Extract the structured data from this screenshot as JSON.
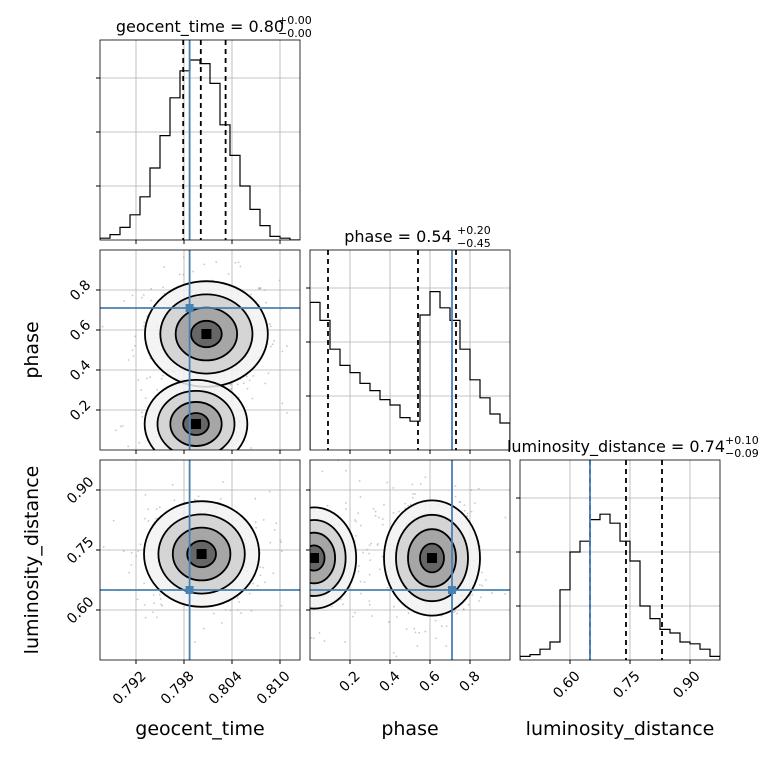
{
  "chart_data": {
    "type": "corner",
    "parameters": [
      {
        "name": "geocent_time",
        "axis_label": "geocent_time",
        "range": [
          0.7875,
          0.8125
        ],
        "ticks": [
          0.792,
          0.798,
          0.804,
          0.81
        ],
        "tick_labels": [
          "0.792",
          "0.798",
          "0.804",
          "0.810"
        ],
        "truth": 0.7987,
        "quantiles": [
          0.7979,
          0.8001,
          0.8032
        ],
        "title_prefix": "geocent_time = ",
        "median": "0.80",
        "upper_err": "+0.00",
        "lower_err": "−0.00",
        "hist_counts": [
          0.01,
          0.03,
          0.07,
          0.14,
          0.24,
          0.4,
          0.58,
          0.79,
          0.94,
          1.0,
          0.98,
          0.87,
          0.64,
          0.47,
          0.3,
          0.17,
          0.08,
          0.02,
          0.01,
          0.0
        ]
      },
      {
        "name": "phase",
        "axis_label": "phase",
        "range": [
          0.0,
          1.0
        ],
        "ticks": [
          0.2,
          0.4,
          0.6,
          0.8
        ],
        "tick_labels": [
          "0.2",
          "0.4",
          "0.6",
          "0.8"
        ],
        "truth": 0.71,
        "quantiles": [
          0.09,
          0.54,
          0.73
        ],
        "title_prefix": "phase = ",
        "median": "0.54",
        "upper_err": "+0.20",
        "lower_err": "−0.45",
        "hist_counts": [
          0.82,
          0.72,
          0.56,
          0.47,
          0.43,
          0.37,
          0.33,
          0.28,
          0.25,
          0.18,
          0.16,
          0.75,
          0.88,
          0.79,
          0.72,
          0.56,
          0.39,
          0.29,
          0.2,
          0.15
        ]
      },
      {
        "name": "luminosity_distance",
        "axis_label": "luminosity_distance",
        "range": [
          0.475,
          0.975
        ],
        "ticks": [
          0.6,
          0.75,
          0.9
        ],
        "tick_labels": [
          "0.60",
          "0.75",
          "0.90"
        ],
        "truth": 0.65,
        "quantiles": [
          0.65,
          0.74,
          0.83
        ],
        "title_prefix": "luminosity_distance = ",
        "median": "0.74",
        "upper_err": "+0.10",
        "lower_err": "−0.09",
        "hist_counts": [
          0.02,
          0.03,
          0.06,
          0.1,
          0.39,
          0.6,
          0.66,
          0.78,
          0.81,
          0.76,
          0.66,
          0.55,
          0.3,
          0.23,
          0.17,
          0.15,
          0.1,
          0.09,
          0.06,
          0.02
        ]
      }
    ],
    "truth_point": {
      "geocent_time": 0.7987,
      "phase": 0.71,
      "luminosity_distance": 0.65
    },
    "density_peaks": {
      "geocent_time_vs_phase": [
        {
          "x": 0.8008,
          "y": 0.58,
          "weight": 1.0
        },
        {
          "x": 0.7995,
          "y": 0.13,
          "weight": 0.55
        }
      ],
      "geocent_time_vs_luminosity_distance": [
        {
          "x": 0.8002,
          "y": 0.74,
          "weight": 1.0
        }
      ],
      "phase_vs_luminosity_distance": [
        {
          "x": 0.61,
          "y": 0.73,
          "weight": 1.0
        },
        {
          "x": 0.02,
          "y": 0.73,
          "weight": 0.65
        }
      ]
    },
    "colors": {
      "truth": "#4682b4",
      "hist": "#000000",
      "quantile": "#000000",
      "grid": "#b0b0b0",
      "contour": "#000000"
    },
    "grid": true
  }
}
